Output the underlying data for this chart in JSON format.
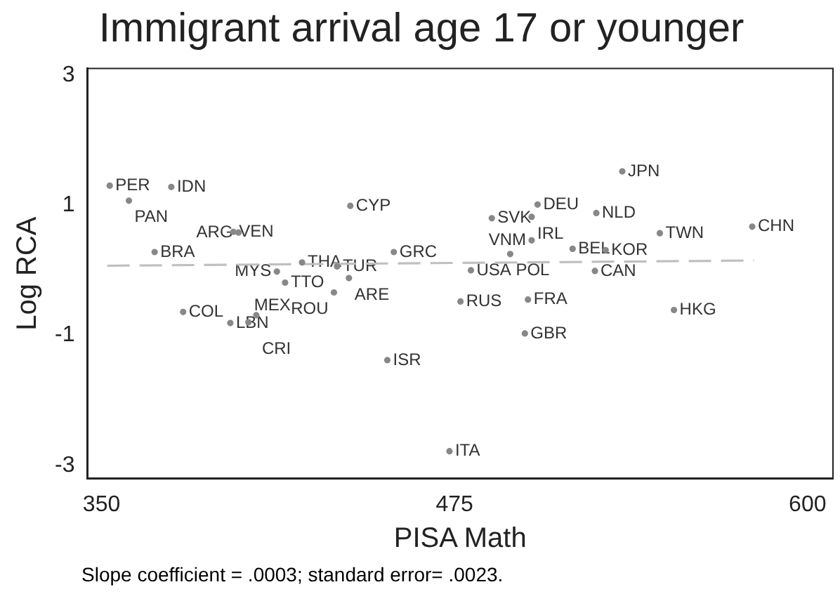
{
  "chart_data": {
    "type": "scatter",
    "title": "Immigrant arrival age 17 or younger",
    "xlabel": "PISA Math",
    "ylabel": "Log RCA",
    "xlim": [
      345,
      609
    ],
    "ylim": [
      -3.2,
      3.1
    ],
    "xticks": [
      350,
      475,
      600
    ],
    "yticks": [
      -3,
      -1,
      1,
      3
    ],
    "grid": false,
    "legend": false,
    "marker": "circle",
    "series": [
      {
        "type": "scatter",
        "color": "#888888",
        "x": [
          352.9,
          374.7,
          359.7,
          396.7,
          398.5,
          368.8,
          421.0,
          433.4,
          412.1,
          415.0,
          437.6,
          432.3,
          378.9,
          395.6,
          404.8,
          402.0,
          438.1,
          453.5,
          488.2,
          504.4,
          502.3,
          502.3,
          494.7,
          516.8,
          480.8,
          477.1,
          501.0,
          499.9,
          451.2,
          473.2,
          534.4,
          525.2,
          547.7,
          580.4,
          528.5,
          524.7,
          552.7
        ],
        "values": [
          1.3,
          1.28,
          1.07,
          0.59,
          0.58,
          0.28,
          0.12,
          0.06,
          -0.02,
          -0.19,
          -0.12,
          -0.34,
          -0.64,
          -0.81,
          -0.69,
          -0.8,
          0.99,
          0.28,
          0.8,
          1.01,
          0.82,
          0.46,
          0.25,
          0.33,
          0.0,
          -0.48,
          -0.45,
          -0.97,
          -1.38,
          -2.78,
          1.52,
          0.88,
          0.57,
          0.67,
          0.31,
          -0.01,
          -0.61
        ]
      },
      {
        "type": "line",
        "color": "#c0c0c0",
        "line_style": "dashed",
        "marker": "none",
        "x": [
          352,
          581
        ],
        "values": [
          0.07,
          0.15
        ]
      }
    ],
    "annotations": [
      {
        "text": "PER",
        "x": 352.9,
        "y": 1.3
      },
      {
        "text": "IDN",
        "x": 374.7,
        "y": 1.28
      },
      {
        "text": "PAN",
        "x": 359.7,
        "y": 1.07
      },
      {
        "text": "VEN",
        "x": 396.7,
        "y": 0.59
      },
      {
        "text": "ARG",
        "x": 398.5,
        "y": 0.58
      },
      {
        "text": "BRA",
        "x": 368.8,
        "y": 0.28
      },
      {
        "text": "THA",
        "x": 421.0,
        "y": 0.12
      },
      {
        "text": "TUR",
        "x": 433.4,
        "y": 0.06
      },
      {
        "text": "MYS",
        "x": 412.1,
        "y": -0.02
      },
      {
        "text": "TTO",
        "x": 415.0,
        "y": -0.19
      },
      {
        "text": "ARE",
        "x": 437.6,
        "y": -0.12
      },
      {
        "text": "ROU",
        "x": 432.3,
        "y": -0.34
      },
      {
        "text": "COL",
        "x": 378.9,
        "y": -0.64
      },
      {
        "text": "LBN",
        "x": 395.6,
        "y": -0.81
      },
      {
        "text": "CRI",
        "x": 404.8,
        "y": -0.69
      },
      {
        "text": "MEX",
        "x": 402.0,
        "y": -0.8
      },
      {
        "text": "CYP",
        "x": 438.1,
        "y": 0.99
      },
      {
        "text": "GRC",
        "x": 453.5,
        "y": 0.28
      },
      {
        "text": "SVK",
        "x": 488.2,
        "y": 0.8
      },
      {
        "text": "DEU",
        "x": 504.4,
        "y": 1.01
      },
      {
        "text": "IRL",
        "x": 502.3,
        "y": 0.82
      },
      {
        "text": "VNM",
        "x": 502.3,
        "y": 0.46
      },
      {
        "text": "POL",
        "x": 494.7,
        "y": 0.25
      },
      {
        "text": "BEL",
        "x": 516.8,
        "y": 0.33
      },
      {
        "text": "USA",
        "x": 480.8,
        "y": 0.0
      },
      {
        "text": "RUS",
        "x": 477.1,
        "y": -0.48
      },
      {
        "text": "FRA",
        "x": 501.0,
        "y": -0.45
      },
      {
        "text": "GBR",
        "x": 499.9,
        "y": -0.97
      },
      {
        "text": "ISR",
        "x": 451.2,
        "y": -1.38
      },
      {
        "text": "ITA",
        "x": 473.2,
        "y": -2.78
      },
      {
        "text": "JPN",
        "x": 534.4,
        "y": 1.52
      },
      {
        "text": "NLD",
        "x": 525.2,
        "y": 0.88
      },
      {
        "text": "TWN",
        "x": 547.7,
        "y": 0.57
      },
      {
        "text": "CHN",
        "x": 580.4,
        "y": 0.67
      },
      {
        "text": "KOR",
        "x": 528.5,
        "y": 0.31
      },
      {
        "text": "CAN",
        "x": 524.7,
        "y": -0.01
      },
      {
        "text": "HKG",
        "x": 552.7,
        "y": -0.61
      },
      "Slope coefficient = .0003; standard error= .0023."
    ]
  }
}
